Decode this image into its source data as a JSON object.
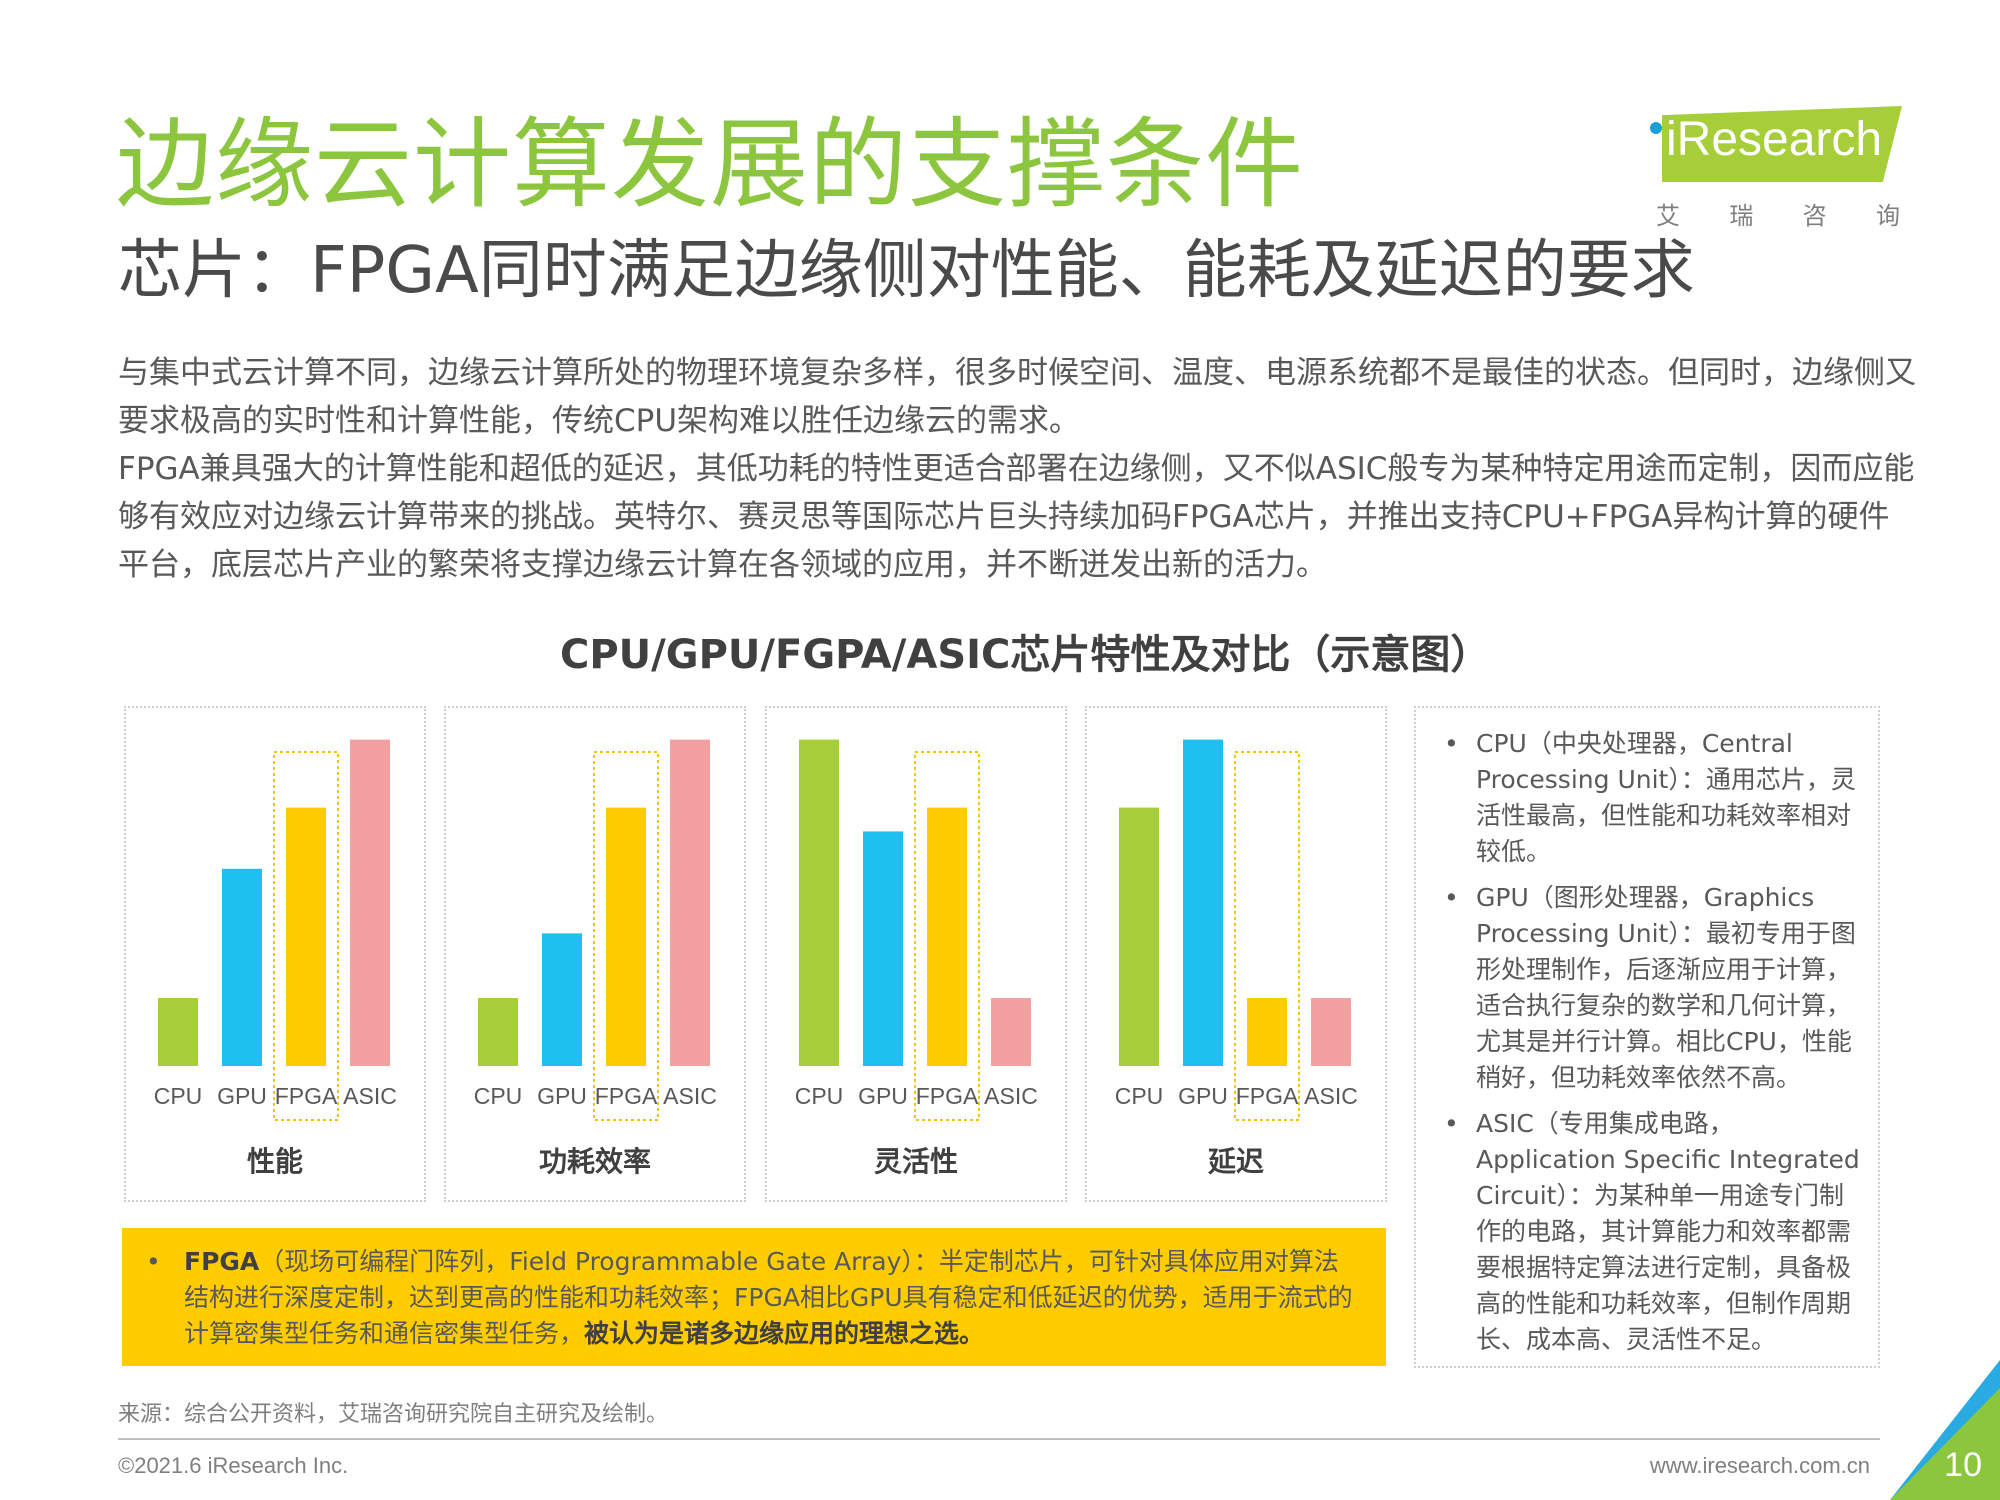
{
  "header": {
    "title": "边缘云计算发展的支撑条件",
    "subtitle": "芯片：FPGA同时满足边缘侧对性能、能耗及延迟的要求",
    "logo_text": "iResearch",
    "logo_cn": [
      "艾",
      "瑞",
      "咨",
      "询"
    ]
  },
  "body": {
    "paragraph1": "与集中式云计算不同，边缘云计算所处的物理环境复杂多样，很多时候空间、温度、电源系统都不是最佳的状态。但同时，边缘侧又要求极高的实时性和计算性能，传统CPU架构难以胜任边缘云的需求。",
    "paragraph2": "FPGA兼具强大的计算性能和超低的延迟，其低功耗的特性更适合部署在边缘侧，又不似ASIC般专为某种特定用途而定制，因而应能够有效应对边缘云计算带来的挑战。英特尔、赛灵思等国际芯片巨头持续加码FPGA芯片，并推出支持CPU+FPGA异构计算的硬件平台，底层芯片产业的繁荣将支撑边缘云计算在各领域的应用，并不断迸发出新的活力。"
  },
  "chart_data": [
    {
      "type": "bar",
      "title": "CPU/GPU/FGPA/ASIC芯片特性及对比（示意图）",
      "xlabel": "性能",
      "categories": [
        "CPU",
        "GPU",
        "FPGA",
        "ASIC"
      ],
      "values": [
        2,
        5.8,
        7.6,
        9.6
      ],
      "colors": [
        "#a6ce39",
        "#1ec0f0",
        "#ffcc00",
        "#f4a0a0"
      ],
      "highlight": "FPGA",
      "ylim": [
        0,
        10
      ]
    },
    {
      "type": "bar",
      "xlabel": "功耗效率",
      "categories": [
        "CPU",
        "GPU",
        "FPGA",
        "ASIC"
      ],
      "values": [
        2,
        3.9,
        7.6,
        9.6
      ],
      "colors": [
        "#a6ce39",
        "#1ec0f0",
        "#ffcc00",
        "#f4a0a0"
      ],
      "highlight": "FPGA",
      "ylim": [
        0,
        10
      ]
    },
    {
      "type": "bar",
      "xlabel": "灵活性",
      "categories": [
        "CPU",
        "GPU",
        "FPGA",
        "ASIC"
      ],
      "values": [
        9.6,
        6.9,
        7.6,
        2
      ],
      "colors": [
        "#a6ce39",
        "#1ec0f0",
        "#ffcc00",
        "#f4a0a0"
      ],
      "highlight": "FPGA",
      "ylim": [
        0,
        10
      ]
    },
    {
      "type": "bar",
      "xlabel": "延迟",
      "categories": [
        "CPU",
        "GPU",
        "FPGA",
        "ASIC"
      ],
      "values": [
        7.6,
        9.6,
        2,
        2
      ],
      "colors": [
        "#a6ce39",
        "#1ec0f0",
        "#ffcc00",
        "#f4a0a0"
      ],
      "highlight": "FPGA",
      "ylim": [
        0,
        10
      ]
    }
  ],
  "info": {
    "bullet": "•",
    "items": [
      "CPU（中央处理器，Central Processing Unit）：通用芯片，灵活性最高，但性能和功耗效率相对较低。",
      "GPU（图形处理器，Graphics Processing Unit）：最初专用于图形处理制作，后逐渐应用于计算，适合执行复杂的数学和几何计算，尤其是并行计算。相比CPU，性能稍好，但功耗效率依然不高。",
      "ASIC（专用集成电路，Application Specific Integrated Circuit）：为某种单一用途专门制作的电路，其计算能力和效率都需要根据特定算法进行定制，具备极高的性能和功耗效率，但制作周期长、成本高、灵活性不足。"
    ]
  },
  "fpga_note": {
    "bullet": "•",
    "lead": "FPGA",
    "text": "（现场可编程门阵列，Field Programmable Gate Array）：半定制芯片，可针对具体应用对算法结构进行深度定制，达到更高的性能和功耗效率；FPGA相比GPU具有稳定和低延迟的优势，适用于流式的计算密集型任务和通信密集型任务，",
    "emphasis": "被认为是诸多边缘应用的理想之选。"
  },
  "footer": {
    "source": "来源：综合公开资料，艾瑞咨询研究院自主研究及绘制。",
    "copyright": "©2021.6 iResearch Inc.",
    "website": "www.iresearch.com.cn",
    "page_number": "10",
    "accent_colors": [
      "#29abe2",
      "#8cc63f"
    ]
  }
}
